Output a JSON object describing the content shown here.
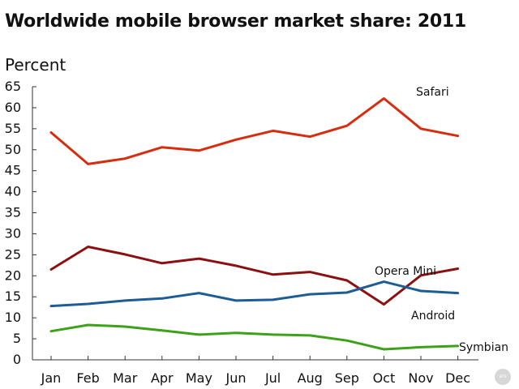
{
  "title": "Worldwide mobile browser market share: 2011",
  "logo_text": "ars",
  "chart_data": {
    "type": "line",
    "title": "Worldwide mobile browser market share: 2011",
    "ylabel": "Percent",
    "xlabel": "",
    "ylim": [
      0,
      65
    ],
    "yticks": [
      0,
      5,
      10,
      15,
      20,
      25,
      30,
      35,
      40,
      45,
      50,
      55,
      60,
      65
    ],
    "grid": false,
    "legend": "inline labels",
    "categories": [
      "Jan",
      "Feb",
      "Mar",
      "Apr",
      "May",
      "Jun",
      "Jul",
      "Aug",
      "Sep",
      "Oct",
      "Nov",
      "Dec"
    ],
    "series": [
      {
        "name": "Safari",
        "color": "#d62d0f",
        "values": [
          54.1,
          46.6,
          47.9,
          50.6,
          49.8,
          52.4,
          54.5,
          53.1,
          55.7,
          62.2,
          55.0,
          53.3
        ]
      },
      {
        "name": "Android",
        "color": "#8c1010",
        "values": [
          21.5,
          26.9,
          25.1,
          23.0,
          24.1,
          22.4,
          20.3,
          20.9,
          18.9,
          13.2,
          20.1,
          21.7
        ]
      },
      {
        "name": "Opera Mini",
        "color": "#1c5d96",
        "values": [
          12.8,
          13.3,
          14.1,
          14.6,
          15.9,
          14.1,
          14.3,
          15.6,
          16.0,
          18.6,
          16.4,
          15.9
        ]
      },
      {
        "name": "Symbian",
        "color": "#3ba219",
        "values": [
          6.8,
          8.3,
          7.9,
          7.0,
          6.0,
          6.4,
          6.0,
          5.8,
          4.6,
          2.5,
          3.0,
          3.3
        ]
      }
    ]
  }
}
